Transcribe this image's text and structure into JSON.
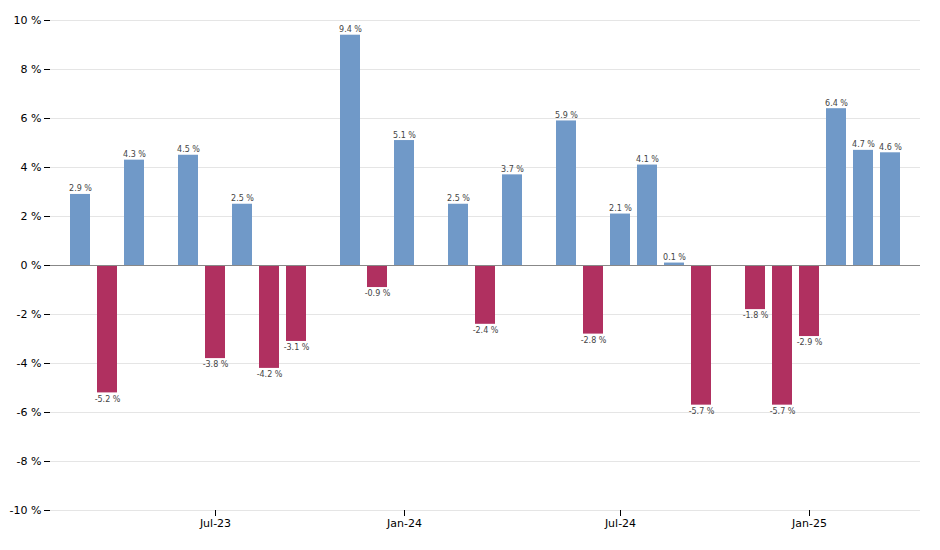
{
  "chart_data": {
    "type": "bar",
    "categories": [
      null,
      null,
      null,
      null,
      null,
      "Jul-23",
      null,
      null,
      null,
      null,
      null,
      null,
      "Jan-24",
      null,
      null,
      null,
      null,
      null,
      null,
      null,
      "Jul-24",
      null,
      null,
      null,
      null,
      null,
      null,
      "Jan-25",
      null,
      null,
      null
    ],
    "values": [
      2.9,
      -5.2,
      4.3,
      null,
      4.5,
      -3.8,
      2.5,
      -4.2,
      -3.1,
      null,
      9.4,
      -0.9,
      5.1,
      null,
      2.5,
      -2.4,
      3.7,
      null,
      5.9,
      -2.8,
      2.1,
      4.1,
      0.1,
      -5.7,
      null,
      -1.8,
      -5.7,
      -2.9,
      6.4,
      4.7,
      4.6
    ],
    "value_labels": [
      "2.9 %",
      "-5.2 %",
      "4.3 %",
      null,
      "4.5 %",
      "-3.8 %",
      "2.5 %",
      "-4.2 %",
      "-3.1 %",
      null,
      "9.4 %",
      "-0.9 %",
      "5.1 %",
      null,
      "2.5 %",
      "-2.4 %",
      "3.7 %",
      null,
      "5.9 %",
      "-2.8 %",
      "2.1 %",
      "4.1 %",
      "0.1 %",
      "-5.7 %",
      null,
      "-1.8 %",
      "-5.7 %",
      "-2.9 %",
      "6.4 %",
      "4.7 %",
      "4.6 %"
    ],
    "colors": [
      "#7099C8",
      "#B03060",
      "#7099C8",
      null,
      "#7099C8",
      "#B03060",
      "#7099C8",
      "#B03060",
      "#B03060",
      null,
      "#7099C8",
      "#B03060",
      "#7099C8",
      null,
      "#7099C8",
      "#B03060",
      "#7099C8",
      null,
      "#7099C8",
      "#B03060",
      "#7099C8",
      "#7099C8",
      "#7099C8",
      "#B03060",
      null,
      "#B03060",
      "#B03060",
      "#B03060",
      "#7099C8",
      "#7099C8",
      "#7099C8"
    ],
    "ylim": [
      -10,
      10
    ],
    "yticks": [
      {
        "value": -10,
        "label": "-10 %"
      },
      {
        "value": -8,
        "label": "-8 %"
      },
      {
        "value": -6,
        "label": "-6 %"
      },
      {
        "value": -4,
        "label": "-4 %"
      },
      {
        "value": -2,
        "label": "-2 %"
      },
      {
        "value": 0,
        "label": "0 %"
      },
      {
        "value": 2,
        "label": "2 %"
      },
      {
        "value": 4,
        "label": "4 %"
      },
      {
        "value": 6,
        "label": "6 %"
      },
      {
        "value": 8,
        "label": "8 %"
      },
      {
        "value": 10,
        "label": "10 %"
      }
    ],
    "grid": true,
    "data_labels": true
  }
}
